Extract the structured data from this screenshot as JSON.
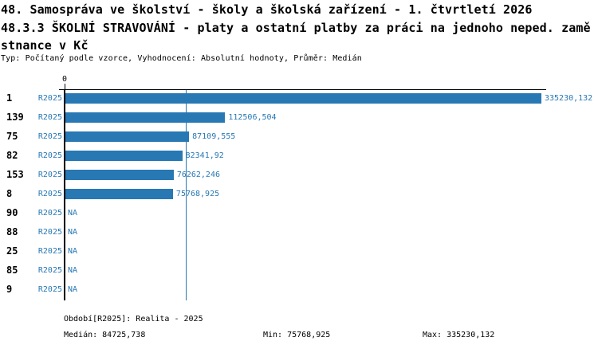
{
  "header": {
    "title_line1": "48. Samospráva ve školství - školy a školská zařízení - 1. čtvrtletí 2026",
    "title_line2": "48.3.3 ŠKOLNÍ STRAVOVÁNÍ - platy a ostatní platby za práci na jednoho neped. zamě",
    "title_line3": "stnance v Kč",
    "subtitle": "Typ: Počítaný podle vzorce, Vyhodnocení: Absolutní hodnoty, Průměr: Medián"
  },
  "chart_data": {
    "type": "bar",
    "orientation": "horizontal",
    "axis_zero_label": "0",
    "series_label": "R2025",
    "categories": [
      "1",
      "139",
      "75",
      "82",
      "153",
      "8",
      "90",
      "88",
      "25",
      "85",
      "9"
    ],
    "values": [
      335230.132,
      112506.504,
      87109.555,
      82341.92,
      76262.246,
      75768.925,
      null,
      null,
      null,
      null,
      null
    ],
    "value_labels": [
      "335230,132",
      "112506,504",
      "87109,555",
      "82341,92",
      "76262,246",
      "75768,925",
      "NA",
      "NA",
      "NA",
      "NA",
      "NA"
    ],
    "xlim": [
      0,
      335230.132
    ],
    "median_value": 84725.738,
    "grid": false,
    "bar_color": "#2878b4",
    "median_line_color": "#2878b4",
    "label_color": "#2878b4"
  },
  "footer": {
    "period": "Období[R2025]: Realita - 2025",
    "median": "Medián: 84725,738",
    "min": "Min: 75768,925",
    "max": "Max: 335230,132"
  }
}
